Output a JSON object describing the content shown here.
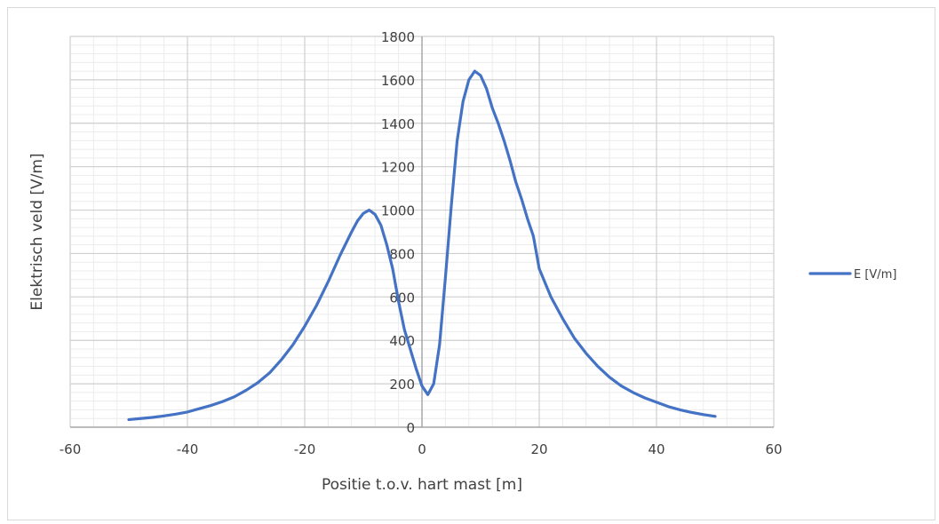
{
  "chart_data": {
    "type": "line",
    "title": "",
    "xlabel": "Positie t.o.v. hart mast [m]",
    "ylabel": "Elektrisch veld [V/m]",
    "xlim": [
      -60,
      60
    ],
    "ylim": [
      0,
      1800
    ],
    "x_ticks": [
      "-60",
      "-40",
      "-20",
      "0",
      "20",
      "40",
      "60"
    ],
    "y_ticks": [
      "0",
      "200",
      "400",
      "600",
      "800",
      "1000",
      "1200",
      "1400",
      "1600",
      "1800"
    ],
    "grid": true,
    "legend_position": "right",
    "series": [
      {
        "name": "E [V/m]",
        "color": "#4472c4",
        "x": [
          -50,
          -48,
          -46,
          -44,
          -42,
          -40,
          -38,
          -36,
          -34,
          -32,
          -30,
          -28,
          -26,
          -24,
          -22,
          -20,
          -18,
          -16,
          -14,
          -12,
          -11,
          -10,
          -9,
          -8,
          -7,
          -6,
          -5,
          -4,
          -3,
          -2,
          -1,
          0,
          1,
          2,
          3,
          4,
          5,
          6,
          7,
          8,
          9,
          10,
          11,
          12,
          13,
          14,
          15,
          16,
          17,
          18,
          19,
          20,
          22,
          24,
          26,
          28,
          30,
          32,
          34,
          36,
          38,
          40,
          42,
          44,
          46,
          48,
          50
        ],
        "y": [
          35,
          40,
          45,
          52,
          60,
          70,
          85,
          100,
          118,
          140,
          170,
          205,
          250,
          310,
          380,
          465,
          560,
          670,
          790,
          900,
          950,
          985,
          1000,
          980,
          930,
          840,
          730,
          580,
          450,
          360,
          270,
          190,
          150,
          200,
          380,
          690,
          1020,
          1320,
          1500,
          1600,
          1640,
          1620,
          1560,
          1470,
          1400,
          1320,
          1230,
          1130,
          1050,
          960,
          880,
          730,
          600,
          500,
          410,
          340,
          280,
          230,
          190,
          160,
          135,
          115,
          95,
          80,
          68,
          58,
          50
        ],
        "y_note": ""
      }
    ]
  }
}
